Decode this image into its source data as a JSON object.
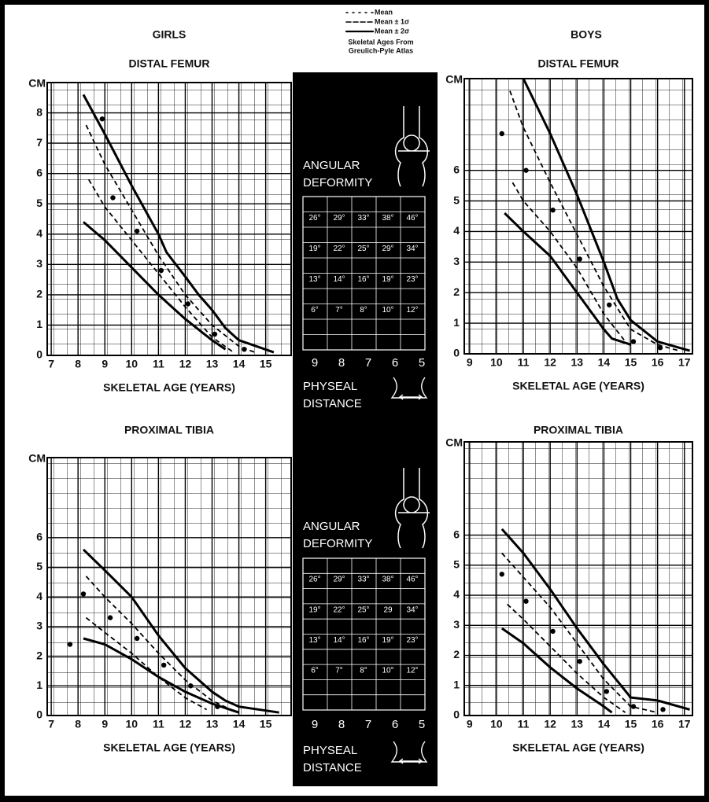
{
  "header": {
    "girls": "GIRLS",
    "boys": "BOYS"
  },
  "legend": {
    "items": [
      {
        "label": "Mean",
        "style": "dots"
      },
      {
        "label": "Mean ± 1σ",
        "style": "dash"
      },
      {
        "label": "Mean ± 2σ",
        "style": "solid"
      }
    ],
    "note": [
      "Skeletal Ages From",
      "Greulich-Pyle Atlas"
    ]
  },
  "chart_data": [
    {
      "type": "line",
      "title": "DISTAL FEMUR",
      "xlabel": "SKELETAL AGE (YEARS)",
      "ylabel": "CM",
      "grid": true,
      "xlim": [
        6.85,
        15.95
      ],
      "ylim": [
        0,
        9
      ],
      "xticks": [
        7,
        8,
        9,
        10,
        11,
        12,
        13,
        14,
        15
      ],
      "yticks": [
        0,
        1,
        2,
        3,
        4,
        5,
        6,
        7,
        8
      ],
      "series": [
        {
          "style": "solid",
          "x": [
            8.2,
            9,
            10,
            11,
            11.3,
            12,
            12.5,
            13,
            13.5,
            14,
            15.3
          ],
          "values": [
            8.6,
            7.3,
            5.6,
            4,
            3.4,
            2.6,
            2,
            1.5,
            0.9,
            0.5,
            0.1
          ]
        },
        {
          "style": "solid",
          "x": [
            8.2,
            9,
            10,
            11,
            12,
            13,
            13.5
          ],
          "values": [
            4.4,
            3.8,
            2.9,
            2,
            1.2,
            0.5,
            0.2
          ]
        },
        {
          "style": "dash",
          "x": [
            8.3,
            9,
            10,
            11,
            12,
            13,
            14,
            14.6
          ],
          "values": [
            7.6,
            6.3,
            4.8,
            3.3,
            2,
            1,
            0.3,
            0.1
          ]
        },
        {
          "style": "dash",
          "x": [
            8.4,
            9,
            10,
            11,
            12,
            13,
            13.8
          ],
          "values": [
            5.8,
            4.9,
            3.8,
            2.7,
            1.6,
            0.6,
            0.1
          ]
        },
        {
          "style": "dots",
          "x": [
            8.9,
            9.3,
            10.2,
            11.1,
            12.1,
            13.1,
            14.2
          ],
          "values": [
            7.8,
            5.2,
            4.1,
            2.8,
            1.7,
            0.7,
            0.2
          ]
        }
      ]
    },
    {
      "type": "line",
      "title": "DISTAL FEMUR",
      "xlabel": "SKELETAL AGE (YEARS)",
      "ylabel": "CM",
      "grid": true,
      "xlim": [
        8.8,
        17.3
      ],
      "ylim": [
        0,
        9
      ],
      "xticks": [
        9,
        10,
        11,
        12,
        13,
        14,
        15,
        16,
        17
      ],
      "yticks": [
        0,
        1,
        2,
        3,
        4,
        5,
        6
      ],
      "series": [
        {
          "style": "solid",
          "x": [
            11,
            12,
            13,
            14,
            14.5,
            15,
            16,
            17.2
          ],
          "values": [
            9,
            7.2,
            5.2,
            3,
            1.8,
            1.1,
            0.4,
            0.1
          ]
        },
        {
          "style": "solid",
          "x": [
            10.3,
            11,
            12,
            13,
            14,
            14.3,
            15
          ],
          "values": [
            4.6,
            4,
            3.2,
            2,
            0.8,
            0.5,
            0.3
          ]
        },
        {
          "style": "dash",
          "x": [
            10.5,
            11,
            12,
            13,
            14,
            15,
            16,
            16.8
          ],
          "values": [
            8.6,
            7.4,
            5.6,
            3.9,
            2.2,
            0.8,
            0.3,
            0.1
          ]
        },
        {
          "style": "dash",
          "x": [
            10.6,
            11,
            12,
            13,
            14,
            14.8
          ],
          "values": [
            5.6,
            5,
            4,
            2.8,
            1.3,
            0.4
          ]
        },
        {
          "style": "dots",
          "x": [
            10.2,
            11.1,
            12.1,
            13.1,
            14.2,
            15.1,
            16.1
          ],
          "values": [
            7.2,
            6,
            4.7,
            3.1,
            1.6,
            0.4,
            0.2
          ]
        }
      ]
    },
    {
      "type": "line",
      "title": "PROXIMAL TIBIA",
      "xlabel": "SKELETAL AGE (YEARS)",
      "ylabel": "CM",
      "grid": true,
      "xlim": [
        6.85,
        15.95
      ],
      "ylim": [
        0,
        8.7
      ],
      "xticks": [
        7,
        8,
        9,
        10,
        11,
        12,
        13,
        14,
        15
      ],
      "yticks": [
        0,
        1,
        2,
        3,
        4,
        5,
        6
      ],
      "series": [
        {
          "style": "solid",
          "x": [
            8.2,
            9,
            10,
            11,
            12,
            13,
            13.5,
            14,
            15.5
          ],
          "values": [
            5.6,
            4.9,
            4,
            2.7,
            1.6,
            0.8,
            0.5,
            0.3,
            0.1
          ]
        },
        {
          "style": "solid",
          "x": [
            8.2,
            9,
            10,
            11,
            12,
            13,
            14
          ],
          "values": [
            2.6,
            2.4,
            1.9,
            1.3,
            0.8,
            0.4,
            0.1
          ]
        },
        {
          "style": "dash",
          "x": [
            8.3,
            9,
            10,
            11,
            12,
            13,
            13.7
          ],
          "values": [
            4.7,
            4,
            3.1,
            2.1,
            1.2,
            0.5,
            0.2
          ]
        },
        {
          "style": "dash",
          "x": [
            8.3,
            9,
            10,
            11,
            12,
            12.8
          ],
          "values": [
            3.3,
            2.8,
            2.1,
            1.3,
            0.6,
            0.2
          ]
        },
        {
          "style": "dots",
          "x": [
            7.7,
            8.2,
            9.2,
            10.2,
            11.2,
            12.2,
            13.2
          ],
          "values": [
            2.4,
            4.1,
            3.3,
            2.6,
            1.7,
            1,
            0.3
          ]
        }
      ]
    },
    {
      "type": "line",
      "title": "PROXIMAL TIBIA",
      "xlabel": "SKELETAL AGE (YEARS)",
      "ylabel": "CM",
      "grid": true,
      "xlim": [
        8.8,
        17.3
      ],
      "ylim": [
        0,
        9.1
      ],
      "xticks": [
        9,
        10,
        11,
        12,
        13,
        14,
        15,
        16,
        17
      ],
      "yticks": [
        0,
        1,
        2,
        3,
        4,
        5,
        6
      ],
      "series": [
        {
          "style": "solid",
          "x": [
            10.2,
            11,
            12,
            13,
            14,
            15,
            16,
            17.2
          ],
          "values": [
            6.2,
            5.4,
            4.2,
            2.9,
            1.7,
            0.6,
            0.5,
            0.2
          ]
        },
        {
          "style": "solid",
          "x": [
            10.2,
            11,
            12,
            13,
            14,
            14.3
          ],
          "values": [
            2.9,
            2.4,
            1.6,
            0.9,
            0.3,
            0.1
          ]
        },
        {
          "style": "dash",
          "x": [
            10.2,
            11,
            12,
            13,
            14,
            15,
            16
          ],
          "values": [
            5.4,
            4.6,
            3.6,
            2.4,
            1.2,
            0.3,
            0.1
          ]
        },
        {
          "style": "dash",
          "x": [
            10.4,
            11,
            12,
            13,
            14,
            14.8
          ],
          "values": [
            3.7,
            3.2,
            2.3,
            1.4,
            0.6,
            0.1
          ]
        },
        {
          "style": "dots",
          "x": [
            10.2,
            11.1,
            12.1,
            13.1,
            14.1,
            15.1,
            16.2
          ],
          "values": [
            4.7,
            3.8,
            2.8,
            1.8,
            0.8,
            0.3,
            0.2
          ]
        }
      ]
    }
  ],
  "nomogram": [
    {
      "angular": [
        "ANGULAR",
        "DEFORMITY"
      ],
      "rows": [
        [
          "26°",
          "29°",
          "33°",
          "38°",
          "46°"
        ],
        [
          "19°",
          "22°",
          "25°",
          "29°",
          "34°"
        ],
        [
          "13°",
          "14°",
          "16°",
          "19°",
          "23°"
        ],
        [
          "6°",
          "7°",
          "8°",
          "10°",
          "12°"
        ]
      ],
      "scale": [
        9,
        8,
        7,
        6,
        5
      ],
      "physeal": [
        "PHYSEAL",
        "DISTANCE"
      ]
    },
    {
      "angular": [
        "ANGULAR",
        "DEFORMITY"
      ],
      "rows": [
        [
          "26°",
          "29°",
          "33°",
          "38°",
          "46°"
        ],
        [
          "19°",
          "22°",
          "25°",
          "29",
          "34°"
        ],
        [
          "13°",
          "14°",
          "16°",
          "19°",
          "23°"
        ],
        [
          "6°",
          "7°",
          "8°",
          "10°",
          "12°"
        ]
      ],
      "scale": [
        9,
        8,
        7,
        6,
        5
      ],
      "physeal": [
        "PHYSEAL",
        "DISTANCE"
      ]
    }
  ]
}
